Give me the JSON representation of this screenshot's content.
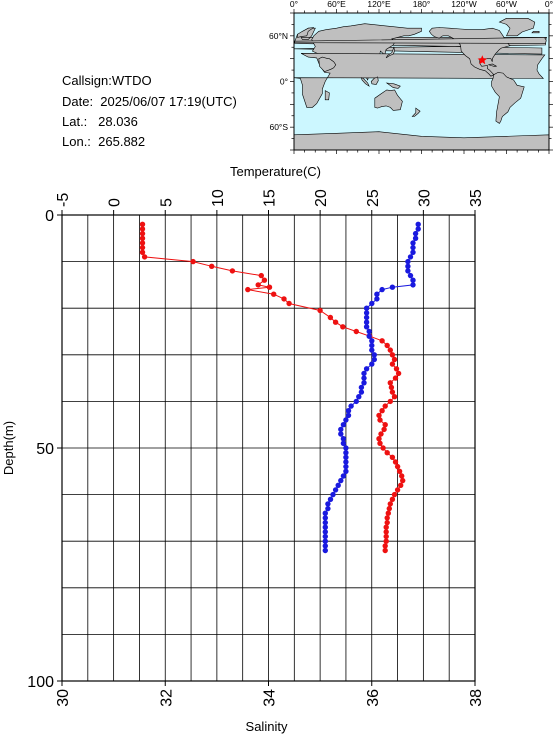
{
  "info": {
    "callsign": "Callsign:WTDO",
    "date": "Date:  2025/06/07 17:19(UTC)",
    "lat": "Lat.:   28.036",
    "lon": "Lon.:  265.882"
  },
  "map": {
    "top_labels": [
      "0°",
      "60°E",
      "120°E",
      "180°",
      "120°W",
      "60°W",
      "0°"
    ],
    "left_labels": [
      "60°N",
      "0°",
      "60°S"
    ],
    "ocean_color": "#ccf7ff",
    "land_color": "#bfbfbf",
    "marker_color": "#ff0000",
    "station": {
      "lat": 28.036,
      "lon": 265.882
    }
  },
  "chart_data": {
    "type": "line",
    "title": "",
    "y_axis": {
      "label": "Depth(m)",
      "ticks": [
        "0",
        "50",
        "100"
      ],
      "range": [
        0,
        100
      ],
      "inverted": true
    },
    "top_axis": {
      "label": "Temperature(C)",
      "ticks": [
        "-5",
        "0",
        "5",
        "10",
        "15",
        "20",
        "25",
        "30",
        "35"
      ],
      "range": [
        -5,
        35
      ]
    },
    "bottom_axis": {
      "label": "Salinity",
      "ticks": [
        "30",
        "32",
        "34",
        "36",
        "38"
      ],
      "range": [
        30,
        38
      ]
    },
    "grid": true,
    "series": [
      {
        "color": "#ee1111",
        "x_axis": "temperature",
        "points": [
          [
            2.8,
            2
          ],
          [
            2.8,
            3
          ],
          [
            2.8,
            4
          ],
          [
            2.8,
            5
          ],
          [
            2.8,
            6
          ],
          [
            2.8,
            7
          ],
          [
            2.8,
            8
          ],
          [
            3.0,
            9
          ],
          [
            7.7,
            10
          ],
          [
            9.5,
            11
          ],
          [
            11.5,
            12
          ],
          [
            14.3,
            13
          ],
          [
            14.6,
            14
          ],
          [
            14.0,
            15
          ],
          [
            15.1,
            15.5
          ],
          [
            13.0,
            16
          ],
          [
            15.5,
            17
          ],
          [
            16.5,
            18
          ],
          [
            17.0,
            19
          ],
          [
            20.0,
            20.5
          ],
          [
            21.0,
            22
          ],
          [
            21.5,
            23
          ],
          [
            22.2,
            24
          ],
          [
            23.5,
            25
          ],
          [
            24.8,
            26
          ],
          [
            26.0,
            27
          ],
          [
            26.5,
            28
          ],
          [
            26.8,
            29
          ],
          [
            27.0,
            30
          ],
          [
            27.2,
            31
          ],
          [
            27.0,
            32
          ],
          [
            27.4,
            33
          ],
          [
            27.6,
            34
          ],
          [
            27.3,
            35
          ],
          [
            26.8,
            36
          ],
          [
            26.9,
            37
          ],
          [
            27.0,
            38
          ],
          [
            27.2,
            39
          ],
          [
            26.8,
            40
          ],
          [
            26.3,
            41
          ],
          [
            26.0,
            42
          ],
          [
            25.7,
            43
          ],
          [
            25.8,
            44
          ],
          [
            26.3,
            45
          ],
          [
            26.2,
            46
          ],
          [
            25.9,
            47
          ],
          [
            25.7,
            48
          ],
          [
            25.8,
            49
          ],
          [
            26.1,
            50
          ],
          [
            26.5,
            51
          ],
          [
            27.0,
            52
          ],
          [
            27.3,
            53
          ],
          [
            27.5,
            54
          ],
          [
            27.7,
            55
          ],
          [
            27.9,
            56
          ],
          [
            28.0,
            57
          ],
          [
            27.8,
            58
          ],
          [
            27.5,
            59
          ],
          [
            27.2,
            60
          ],
          [
            27.0,
            61
          ],
          [
            26.8,
            62
          ],
          [
            26.7,
            63
          ],
          [
            26.6,
            64
          ],
          [
            26.5,
            65
          ],
          [
            26.5,
            66
          ],
          [
            26.4,
            67
          ],
          [
            26.4,
            68
          ],
          [
            26.4,
            69
          ],
          [
            26.4,
            70
          ],
          [
            26.3,
            71
          ],
          [
            26.3,
            72
          ]
        ]
      },
      {
        "color": "#1a1adf",
        "x_axis": "salinity",
        "points": [
          [
            36.9,
            2
          ],
          [
            36.9,
            3
          ],
          [
            36.85,
            4
          ],
          [
            36.85,
            5
          ],
          [
            36.8,
            6
          ],
          [
            36.8,
            7
          ],
          [
            36.8,
            8
          ],
          [
            36.75,
            9
          ],
          [
            36.7,
            10
          ],
          [
            36.7,
            11
          ],
          [
            36.7,
            12
          ],
          [
            36.75,
            13
          ],
          [
            36.8,
            14
          ],
          [
            36.8,
            15
          ],
          [
            36.4,
            15.5
          ],
          [
            36.2,
            16
          ],
          [
            36.1,
            17
          ],
          [
            36.1,
            18
          ],
          [
            36.0,
            19
          ],
          [
            35.9,
            20
          ],
          [
            35.9,
            21
          ],
          [
            35.9,
            22
          ],
          [
            35.9,
            23
          ],
          [
            35.9,
            24
          ],
          [
            35.95,
            25
          ],
          [
            35.95,
            26
          ],
          [
            36.0,
            27
          ],
          [
            36.0,
            28
          ],
          [
            36.0,
            29
          ],
          [
            36.05,
            30
          ],
          [
            36.05,
            31
          ],
          [
            36.0,
            32
          ],
          [
            35.9,
            33
          ],
          [
            35.85,
            34
          ],
          [
            35.85,
            35
          ],
          [
            35.85,
            36
          ],
          [
            35.8,
            37
          ],
          [
            35.8,
            38
          ],
          [
            35.75,
            39
          ],
          [
            35.7,
            40
          ],
          [
            35.6,
            41
          ],
          [
            35.55,
            42
          ],
          [
            35.55,
            43
          ],
          [
            35.5,
            44
          ],
          [
            35.45,
            45
          ],
          [
            35.4,
            46
          ],
          [
            35.4,
            47
          ],
          [
            35.45,
            48
          ],
          [
            35.45,
            49
          ],
          [
            35.5,
            50
          ],
          [
            35.5,
            51
          ],
          [
            35.5,
            52
          ],
          [
            35.5,
            53
          ],
          [
            35.5,
            54
          ],
          [
            35.5,
            55
          ],
          [
            35.45,
            56
          ],
          [
            35.4,
            57
          ],
          [
            35.35,
            58
          ],
          [
            35.3,
            59
          ],
          [
            35.25,
            60
          ],
          [
            35.2,
            61
          ],
          [
            35.15,
            62
          ],
          [
            35.15,
            63
          ],
          [
            35.1,
            64
          ],
          [
            35.1,
            65
          ],
          [
            35.1,
            66
          ],
          [
            35.1,
            67
          ],
          [
            35.1,
            68
          ],
          [
            35.1,
            69
          ],
          [
            35.1,
            70
          ],
          [
            35.1,
            71
          ],
          [
            35.1,
            72
          ]
        ]
      }
    ]
  }
}
